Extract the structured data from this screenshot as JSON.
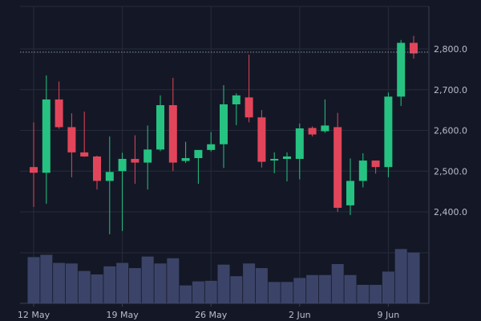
{
  "chart_data": {
    "type": "candlestick",
    "title": "",
    "xlabel": "",
    "ylabel": "",
    "price_ticks": [
      "2,400.0",
      "2,500.0",
      "2,600.0",
      "2,700.0",
      "2,800.0"
    ],
    "price_tick_values": [
      2400,
      2500,
      2600,
      2700,
      2800
    ],
    "ylim": [
      2300,
      2900
    ],
    "x_tick_labels": [
      {
        "label": "12 May",
        "index": 0
      },
      {
        "label": "19 May",
        "index": 7
      },
      {
        "label": "26 May",
        "index": 14
      },
      {
        "label": "2 Jun",
        "index": 21
      },
      {
        "label": "9 Jun",
        "index": 28
      }
    ],
    "reference_line": 2792,
    "grid": true,
    "colors": {
      "background": "#141826",
      "grid": "#262b3b",
      "axis": "#3a4052",
      "up": "#26c281",
      "down": "#e2455a",
      "volume": "#3b4468",
      "text": "#b7bdcc",
      "reference": "#8a93a8"
    },
    "candles": [
      {
        "date": "12 May",
        "open": 2510,
        "high": 2620,
        "low": 2412,
        "close": 2496,
        "volume": 0.8
      },
      {
        "date": "13 May",
        "open": 2496,
        "high": 2735,
        "low": 2420,
        "close": 2676,
        "volume": 0.84
      },
      {
        "date": "14 May",
        "open": 2676,
        "high": 2720,
        "low": 2604,
        "close": 2608,
        "volume": 0.7
      },
      {
        "date": "15 May",
        "open": 2608,
        "high": 2642,
        "low": 2485,
        "close": 2546,
        "volume": 0.69
      },
      {
        "date": "16 May",
        "open": 2546,
        "high": 2646,
        "low": 2535,
        "close": 2536,
        "volume": 0.56
      },
      {
        "date": "17 May",
        "open": 2536,
        "high": 2538,
        "low": 2455,
        "close": 2476,
        "volume": 0.5
      },
      {
        "date": "18 May",
        "open": 2476,
        "high": 2585,
        "low": 2345,
        "close": 2498,
        "volume": 0.64
      },
      {
        "date": "19 May",
        "open": 2500,
        "high": 2545,
        "low": 2353,
        "close": 2530,
        "volume": 0.7
      },
      {
        "date": "20 May",
        "open": 2530,
        "high": 2588,
        "low": 2469,
        "close": 2521,
        "volume": 0.61
      },
      {
        "date": "21 May",
        "open": 2521,
        "high": 2612,
        "low": 2455,
        "close": 2553,
        "volume": 0.81
      },
      {
        "date": "22 May",
        "open": 2553,
        "high": 2686,
        "low": 2549,
        "close": 2662,
        "volume": 0.69
      },
      {
        "date": "23 May",
        "open": 2662,
        "high": 2729,
        "low": 2500,
        "close": 2521,
        "volume": 0.78
      },
      {
        "date": "24 May",
        "open": 2525,
        "high": 2572,
        "low": 2520,
        "close": 2532,
        "volume": 0.31
      },
      {
        "date": "25 May",
        "open": 2532,
        "high": 2550,
        "low": 2469,
        "close": 2552,
        "volume": 0.38
      },
      {
        "date": "26 May",
        "open": 2552,
        "high": 2596,
        "low": 2548,
        "close": 2566,
        "volume": 0.39
      },
      {
        "date": "27 May",
        "open": 2566,
        "high": 2711,
        "low": 2508,
        "close": 2664,
        "volume": 0.67
      },
      {
        "date": "28 May",
        "open": 2664,
        "high": 2691,
        "low": 2613,
        "close": 2686,
        "volume": 0.47
      },
      {
        "date": "29 May",
        "open": 2681,
        "high": 2786,
        "low": 2620,
        "close": 2632,
        "volume": 0.69
      },
      {
        "date": "30 May",
        "open": 2632,
        "high": 2650,
        "low": 2509,
        "close": 2523,
        "volume": 0.61
      },
      {
        "date": "31 May",
        "open": 2530,
        "high": 2546,
        "low": 2495,
        "close": 2530,
        "volume": 0.37
      },
      {
        "date": "1 Jun",
        "open": 2530,
        "high": 2546,
        "low": 2475,
        "close": 2536,
        "volume": 0.37
      },
      {
        "date": "2 Jun",
        "open": 2530,
        "high": 2617,
        "low": 2480,
        "close": 2605,
        "volume": 0.44
      },
      {
        "date": "3 Jun",
        "open": 2606,
        "high": 2610,
        "low": 2585,
        "close": 2590,
        "volume": 0.49
      },
      {
        "date": "4 Jun",
        "open": 2598,
        "high": 2676,
        "low": 2594,
        "close": 2612,
        "volume": 0.49
      },
      {
        "date": "5 Jun",
        "open": 2608,
        "high": 2643,
        "low": 2400,
        "close": 2410,
        "volume": 0.68
      },
      {
        "date": "6 Jun",
        "open": 2416,
        "high": 2531,
        "low": 2392,
        "close": 2476,
        "volume": 0.49
      },
      {
        "date": "7 Jun",
        "open": 2476,
        "high": 2544,
        "low": 2460,
        "close": 2526,
        "volume": 0.32
      },
      {
        "date": "8 Jun",
        "open": 2526,
        "high": 2526,
        "low": 2494,
        "close": 2510,
        "volume": 0.32
      },
      {
        "date": "9 Jun",
        "open": 2510,
        "high": 2693,
        "low": 2485,
        "close": 2683,
        "volume": 0.55
      },
      {
        "date": "10 Jun",
        "open": 2683,
        "high": 2822,
        "low": 2660,
        "close": 2815,
        "volume": 0.94
      },
      {
        "date": "11 Jun",
        "open": 2815,
        "high": 2832,
        "low": 2776,
        "close": 2789,
        "volume": 0.88
      }
    ]
  }
}
